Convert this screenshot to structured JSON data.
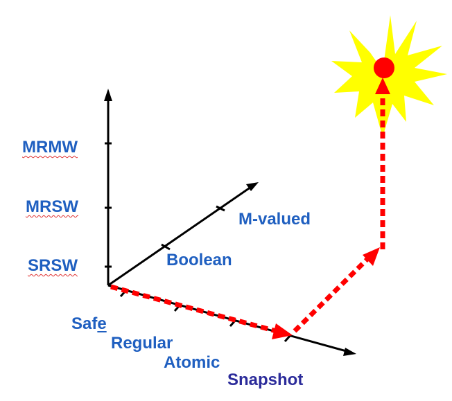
{
  "colors": {
    "label_blue": "#1f5fc0",
    "label_navy": "#2b2b9a",
    "axis": "#000000",
    "path_red": "#ff0000",
    "star_yellow": "#ffff00"
  },
  "icons": [
    "sun-star-icon",
    "goal-dot-icon"
  ],
  "y_axis": {
    "labels": [
      "SRSW",
      "MRSW",
      "MRMW"
    ]
  },
  "diag_axis": {
    "labels": [
      "Boolean",
      "M-valued"
    ]
  },
  "x_axis": {
    "labels": [
      "Saf",
      "e",
      "Regular",
      "Atomic",
      "Snapshot"
    ]
  }
}
